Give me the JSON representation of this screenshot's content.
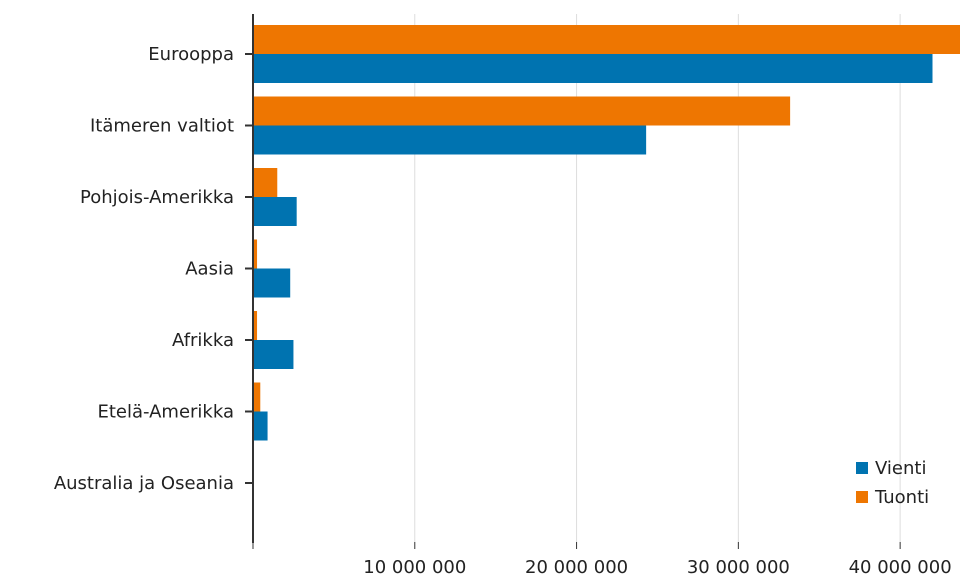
{
  "chart_data": {
    "type": "bar",
    "orientation": "horizontal",
    "categories": [
      "Eurooppa",
      "Itämeren valtiot",
      "Pohjois-Amerikka",
      "Aasia",
      "Afrikka",
      "Etelä-Amerikka",
      "Australia ja Oseania"
    ],
    "series": [
      {
        "name": "Tuonti",
        "color": "#ee7601",
        "values": [
          43700000,
          33200000,
          1500000,
          250000,
          250000,
          450000,
          50000
        ]
      },
      {
        "name": "Vienti",
        "color": "#0073b0",
        "values": [
          42000000,
          24300000,
          2700000,
          2300000,
          2500000,
          900000,
          50000
        ]
      }
    ],
    "xlim": [
      0,
      43700000
    ],
    "xticks": [
      0,
      10000000,
      20000000,
      30000000,
      40000000
    ],
    "xtick_labels": [
      "",
      "10 000 000",
      "20 000 000",
      "30 000 000",
      "40 000 000"
    ],
    "grid": true,
    "legend": {
      "placement": "bottom-right",
      "items": [
        {
          "label": "Vienti",
          "color": "#0073b0"
        },
        {
          "label": "Tuonti",
          "color": "#ee7601"
        }
      ]
    }
  }
}
